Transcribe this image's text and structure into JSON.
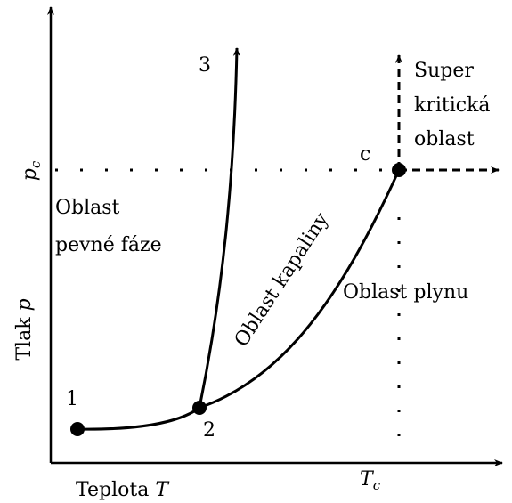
{
  "labels": {
    "point1": "1",
    "point2": "2",
    "point3": "3",
    "critical": "c",
    "supercritical": [
      "Super",
      "kritická",
      "oblast"
    ],
    "solid": [
      "Oblast",
      "pevné fáze"
    ],
    "liquid": "Oblast kapaliny",
    "gas": "Oblast plynu",
    "y_axis": {
      "text": "Tlak ",
      "symbol": "p"
    },
    "x_axis": {
      "text": "Teplota ",
      "symbol": "T"
    },
    "pc": {
      "symbol": "p",
      "sub": "c"
    },
    "tc": {
      "symbol": "T",
      "sub": "c"
    }
  }
}
